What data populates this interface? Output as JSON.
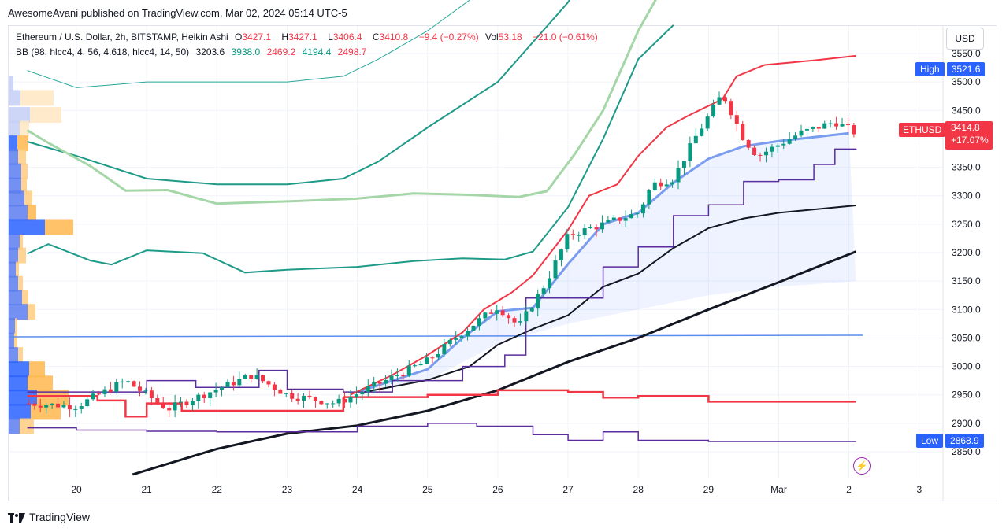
{
  "header": {
    "publisher": "AwesomeAvani published on TradingView.com, Mar 02, 2024 05:14 UTC-5"
  },
  "legend": {
    "line1": {
      "symbol": "Ethereum / U.S. Dollar, 2h, BITSTAMP, Heikin Ashi",
      "o_label": "O",
      "o_val": "3427.1",
      "h_label": "H",
      "h_val": "3427.1",
      "l_label": "L",
      "l_val": "3406.4",
      "c_label": "C",
      "c_val": "3410.8",
      "change": "−9.4 (−0.27%)",
      "vol_label": "Vol",
      "vol_val": "53.18",
      "vol_change": "−21.0 (−0.61%)"
    },
    "line2": {
      "indicator": "BB (98, hlcc4, 4, 56, 4.618, hlcc4, 14, 50)",
      "v1": "3203.6",
      "v2": "3938.0",
      "v3": "2469.2",
      "v4": "4194.4",
      "v5": "2498.7"
    }
  },
  "toolbar": {
    "currency": "USD"
  },
  "badges": {
    "high_label": "High",
    "high_value": "3521.6",
    "low_label": "Low",
    "low_value": "2868.9",
    "symbol": "ETHUSD",
    "last_price": "3414.8",
    "last_change": "+17.07%"
  },
  "footer": {
    "brand": "TradingView"
  },
  "colors": {
    "up": "#089981",
    "down": "#f23645",
    "blue": "#2962ff",
    "purple": "#5b2c9e",
    "lightgreen": "#a5d6a7",
    "teal": "#26a69a"
  },
  "chart_data": {
    "type": "candlestick",
    "y_axis": {
      "ticks": [
        "3550.0",
        "3500.0",
        "3450.0",
        "3400.0",
        "3350.0",
        "3300.0",
        "3250.0",
        "3200.0",
        "3150.0",
        "3100.0",
        "3050.0",
        "3000.0",
        "2950.0",
        "2900.0",
        "2850.0"
      ],
      "ylim": [
        2810,
        3570
      ]
    },
    "x_axis": {
      "ticks": [
        "20",
        "21",
        "22",
        "23",
        "24",
        "25",
        "26",
        "27",
        "28",
        "29",
        "Mar",
        "2",
        "3"
      ]
    },
    "high": 3521.6,
    "low": 2868.9,
    "last": 3414.8,
    "horizontal_level": 3052,
    "series_anchor_points": {
      "bb_upper_thin": [
        [
          19.3,
          3520
        ],
        [
          20,
          3490
        ],
        [
          21,
          3500
        ],
        [
          22,
          3500
        ],
        [
          23,
          3500
        ],
        [
          23.8,
          3510
        ],
        [
          24.3,
          3540
        ],
        [
          25,
          3590
        ],
        [
          26,
          3680
        ],
        [
          27,
          3800
        ],
        [
          28,
          3960
        ],
        [
          29,
          4100
        ],
        [
          30,
          4194
        ]
      ],
      "bb_upper": [
        [
          19.3,
          3395
        ],
        [
          20,
          3370
        ],
        [
          21,
          3330
        ],
        [
          22,
          3320
        ],
        [
          23,
          3320
        ],
        [
          23.8,
          3330
        ],
        [
          24.3,
          3360
        ],
        [
          25,
          3420
        ],
        [
          26,
          3500
        ],
        [
          27,
          3640
        ],
        [
          28,
          3860
        ],
        [
          29,
          4020
        ],
        [
          30,
          3938
        ]
      ],
      "bb_lower_green": [
        [
          19.3,
          3415
        ],
        [
          19.6,
          3393
        ],
        [
          20.2,
          3352
        ],
        [
          20.7,
          3309
        ],
        [
          21.3,
          3310
        ],
        [
          22,
          3286
        ],
        [
          23,
          3290
        ],
        [
          24,
          3295
        ],
        [
          24.8,
          3304
        ],
        [
          25.5,
          3302
        ],
        [
          26.3,
          3298
        ],
        [
          26.7,
          3308
        ],
        [
          27.1,
          3374
        ],
        [
          27.5,
          3450
        ],
        [
          28,
          3590
        ],
        [
          28.5,
          3700
        ],
        [
          29,
          3740
        ]
      ],
      "bb_mid_teal": [
        [
          19.3,
          3198
        ],
        [
          19.6,
          3215
        ],
        [
          20.2,
          3186
        ],
        [
          20.5,
          3179
        ],
        [
          21,
          3204
        ],
        [
          21.8,
          3199
        ],
        [
          22.4,
          3165
        ],
        [
          23,
          3170
        ],
        [
          24,
          3175
        ],
        [
          24.8,
          3185
        ],
        [
          25.5,
          3190
        ],
        [
          26.1,
          3188
        ],
        [
          26.5,
          3202
        ],
        [
          27,
          3280
        ],
        [
          27.5,
          3400
        ],
        [
          28,
          3540
        ],
        [
          28.5,
          3600
        ]
      ],
      "ema_black_long": [
        [
          20.8,
          2810
        ],
        [
          22,
          2855
        ],
        [
          23,
          2882
        ],
        [
          24,
          2896
        ],
        [
          25,
          2922
        ],
        [
          26,
          2958
        ],
        [
          27,
          3008
        ],
        [
          28,
          3050
        ],
        [
          29,
          3100
        ],
        [
          30,
          3148
        ],
        [
          31.1,
          3202
        ]
      ],
      "ema_black_short": [
        [
          24.1,
          2955
        ],
        [
          25,
          2976
        ],
        [
          25.6,
          3000
        ],
        [
          26,
          3038
        ],
        [
          26.5,
          3066
        ],
        [
          27,
          3090
        ],
        [
          27.5,
          3140
        ],
        [
          28,
          3163
        ],
        [
          28.5,
          3208
        ],
        [
          29,
          3243
        ],
        [
          29.5,
          3260
        ],
        [
          30,
          3270
        ],
        [
          31.1,
          3283
        ]
      ],
      "blue_ma": [
        [
          24,
          2955
        ],
        [
          25,
          2995
        ],
        [
          25.5,
          3050
        ],
        [
          26,
          3097
        ],
        [
          26.5,
          3103
        ],
        [
          27,
          3180
        ],
        [
          27.5,
          3250
        ],
        [
          28,
          3270
        ],
        [
          28.5,
          3323
        ],
        [
          29,
          3365
        ],
        [
          29.5,
          3387
        ],
        [
          30,
          3396
        ],
        [
          31,
          3410
        ]
      ],
      "red_upper_step": [
        [
          23.8,
          2946
        ],
        [
          25,
          2950
        ],
        [
          26,
          2958
        ],
        [
          27,
          2955
        ],
        [
          27.5,
          2945
        ],
        [
          28,
          2948
        ],
        [
          28.5,
          2948
        ],
        [
          29,
          2938
        ],
        [
          31.1,
          2938
        ]
      ],
      "red_lower_start": [
        [
          19.3,
          2948
        ],
        [
          20.3,
          2940
        ],
        [
          20.7,
          2912
        ],
        [
          21,
          2935
        ],
        [
          21.5,
          2922
        ],
        [
          23,
          2922
        ],
        [
          23.8,
          2945
        ]
      ],
      "purple_upper": [
        [
          19.3,
          2955
        ],
        [
          20.6,
          2955
        ],
        [
          21,
          2975
        ],
        [
          21.7,
          2963
        ],
        [
          22.6,
          2993
        ],
        [
          23,
          2960
        ],
        [
          23.8,
          2955
        ],
        [
          24.5,
          2975
        ],
        [
          25.5,
          3000
        ],
        [
          26.1,
          3020
        ],
        [
          26.4,
          3120
        ],
        [
          27.5,
          3175
        ],
        [
          28,
          3210
        ],
        [
          28.5,
          3265
        ],
        [
          29,
          3284
        ],
        [
          29.5,
          3325
        ],
        [
          30,
          3328
        ],
        [
          30.5,
          3355
        ],
        [
          30.8,
          3382
        ],
        [
          31.1,
          3383
        ]
      ],
      "purple_lower": [
        [
          19.3,
          2892
        ],
        [
          20,
          2888
        ],
        [
          21,
          2886
        ],
        [
          22,
          2885
        ],
        [
          23,
          2885
        ],
        [
          24,
          2895
        ],
        [
          25,
          2900
        ],
        [
          25.7,
          2895
        ],
        [
          26.5,
          2880
        ],
        [
          27,
          2870
        ],
        [
          27.5,
          2885
        ],
        [
          28,
          2870
        ],
        [
          28.5,
          2870
        ],
        [
          29,
          2868
        ],
        [
          31.1,
          2868
        ]
      ]
    }
  }
}
